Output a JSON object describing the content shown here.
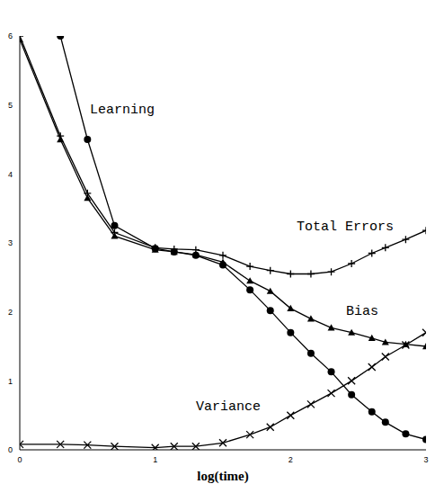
{
  "chart_data": {
    "type": "line",
    "x_label": "log(time)",
    "x": [
      0,
      0.3,
      0.5,
      0.7,
      1.0,
      1.14,
      1.3,
      1.5,
      1.7,
      1.85,
      2.0,
      2.15,
      2.3,
      2.45,
      2.6,
      2.7,
      2.85,
      3.0
    ],
    "series": [
      {
        "name": "Learning",
        "color": "#000000",
        "marker": "circle",
        "values": [
          null,
          6.0,
          4.5,
          3.25,
          2.92,
          2.87,
          2.82,
          2.68,
          2.32,
          2.02,
          1.7,
          1.4,
          1.13,
          0.8,
          0.55,
          0.4,
          0.23,
          0.15
        ]
      },
      {
        "name": "Total Errors",
        "color": "#000000",
        "marker": "plus",
        "values": [
          6.0,
          4.55,
          3.72,
          3.15,
          2.93,
          2.91,
          2.9,
          2.82,
          2.66,
          2.6,
          2.55,
          2.55,
          2.58,
          2.7,
          2.85,
          2.93,
          3.05,
          3.18
        ]
      },
      {
        "name": "Bias",
        "color": "#000000",
        "marker": "triangle",
        "values": [
          5.95,
          4.5,
          3.65,
          3.1,
          2.9,
          2.87,
          2.83,
          2.72,
          2.45,
          2.3,
          2.05,
          1.9,
          1.77,
          1.7,
          1.62,
          1.56,
          1.53,
          1.5
        ]
      },
      {
        "name": "Variance",
        "color": "#000000",
        "marker": "cross",
        "values": [
          0.08,
          0.08,
          0.07,
          0.05,
          0.03,
          0.05,
          0.05,
          0.1,
          0.22,
          0.33,
          0.5,
          0.66,
          0.82,
          1.0,
          1.2,
          1.35,
          1.52,
          1.7
        ]
      }
    ],
    "xlim": [
      0,
      3
    ],
    "xticks": [
      0,
      1,
      2,
      3
    ],
    "ylim": [
      0,
      6
    ],
    "yticks": [
      0,
      1,
      2,
      3,
      4,
      5,
      6
    ],
    "grid": false
  }
}
